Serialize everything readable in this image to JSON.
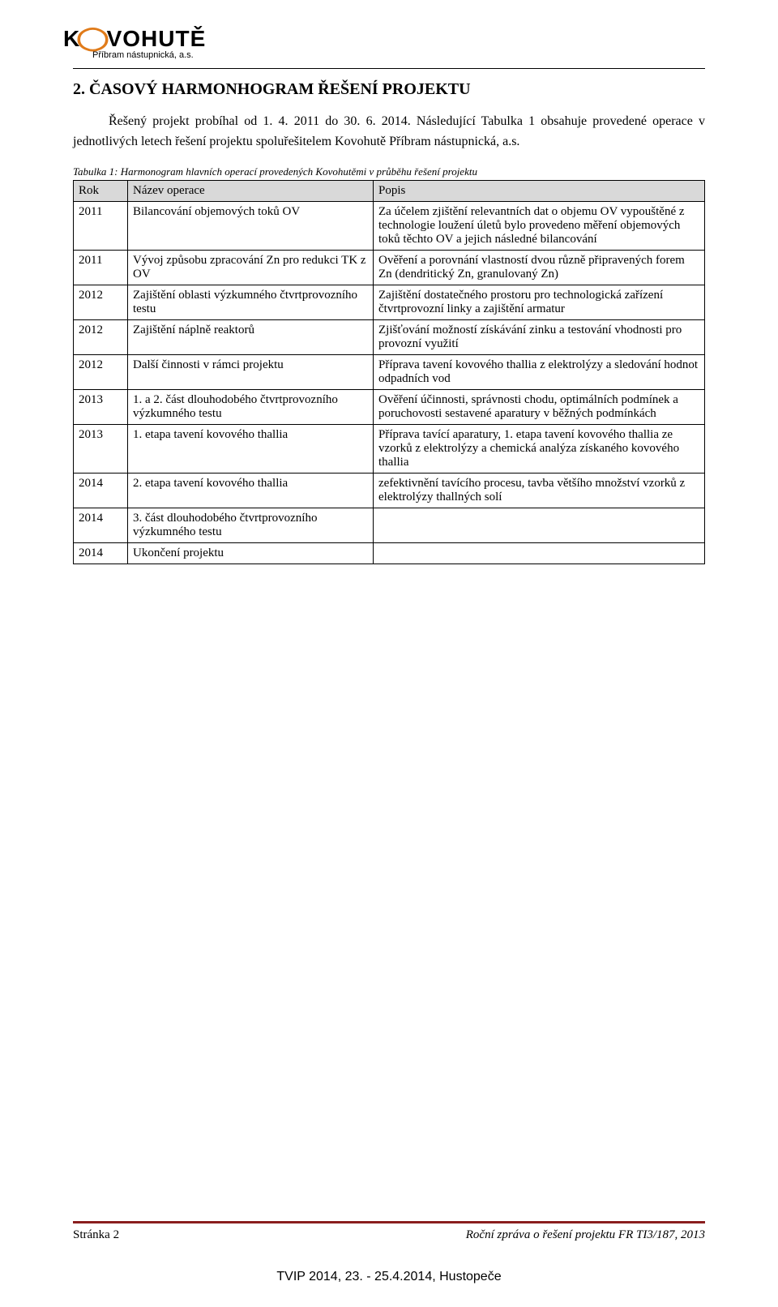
{
  "logo": {
    "brand_k": "K",
    "brand_o": "◯",
    "brand_rest": "VOHUTĚ",
    "subline": "Příbram nástupnická, a.s."
  },
  "section_heading": "2. ČASOVÝ HARMONHOGRAM ŘEŠENÍ PROJEKTU",
  "intro_para": "Řešený projekt probíhal od 1. 4. 2011 do 30. 6. 2014. Následující Tabulka 1 obsahuje provedené operace v jednotlivých letech řešení projektu spoluřešitelem Kovohutě Příbram nástupnická, a.s.",
  "table_caption": "Tabulka 1: Harmonogram hlavních operací provedených Kovohutěmi v průběhu řešení projektu",
  "table": {
    "headers": {
      "rok": "Rok",
      "nazev": "Název operace",
      "popis": "Popis"
    },
    "rows": [
      {
        "rok": "2011",
        "nazev": "Bilancování objemových toků OV",
        "popis": "Za účelem zjištění relevantních dat o objemu OV vypouštěné z technologie loužení úletů bylo provedeno měření objemových toků těchto OV a jejich následné bilancování"
      },
      {
        "rok": "2011",
        "nazev": "Vývoj způsobu zpracování Zn pro redukci TK z OV",
        "popis": "Ověření a porovnání vlastností dvou různě připravených forem Zn (dendritický Zn, granulovaný Zn)"
      },
      {
        "rok": "2012",
        "nazev": "Zajištění oblasti výzkumného čtvrtprovozního testu",
        "popis": "Zajištění dostatečného prostoru pro technologická zařízení čtvrtprovozní linky a zajištění armatur"
      },
      {
        "rok": "2012",
        "nazev": "Zajištění náplně reaktorů",
        "popis": "Zjišťování možností získávání zinku a testování vhodnosti pro provozní využití"
      },
      {
        "rok": "2012",
        "nazev": "Další činnosti v rámci projektu",
        "popis": "Příprava tavení kovového thallia z elektrolýzy a sledování hodnot odpadních vod"
      },
      {
        "rok": "2013",
        "nazev": "1. a 2. část dlouhodobého čtvrtprovozního výzkumného testu",
        "popis": "Ověření účinnosti, správnosti chodu, optimálních podmínek a poruchovosti sestavené aparatury v běžných podmínkách"
      },
      {
        "rok": "2013",
        "nazev": "1. etapa tavení kovového thallia",
        "popis": "Příprava tavící aparatury, 1. etapa tavení kovového thallia ze vzorků z elektrolýzy a chemická analýza získaného kovového thallia"
      },
      {
        "rok": "2014",
        "nazev": "2. etapa tavení kovového thallia",
        "popis": "zefektivnění tavícího procesu, tavba většího množství vzorků z elektrolýzy thallných solí"
      },
      {
        "rok": "2014",
        "nazev": "3. část dlouhodobého čtvrtprovozního výzkumného testu",
        "popis": ""
      },
      {
        "rok": "2014",
        "nazev": "Ukončení projektu",
        "popis": ""
      }
    ]
  },
  "footer": {
    "left": "Stránka 2",
    "right": "Roční zpráva o řešení projektu FR TI3/187, 2013",
    "conf": "TVIP 2014, 23. - 25.4.2014, Hustopeče"
  },
  "colors": {
    "logo_accent": "#e07b1a",
    "footer_rule": "#8a1e1e",
    "table_header_bg": "#d9d9d9"
  }
}
